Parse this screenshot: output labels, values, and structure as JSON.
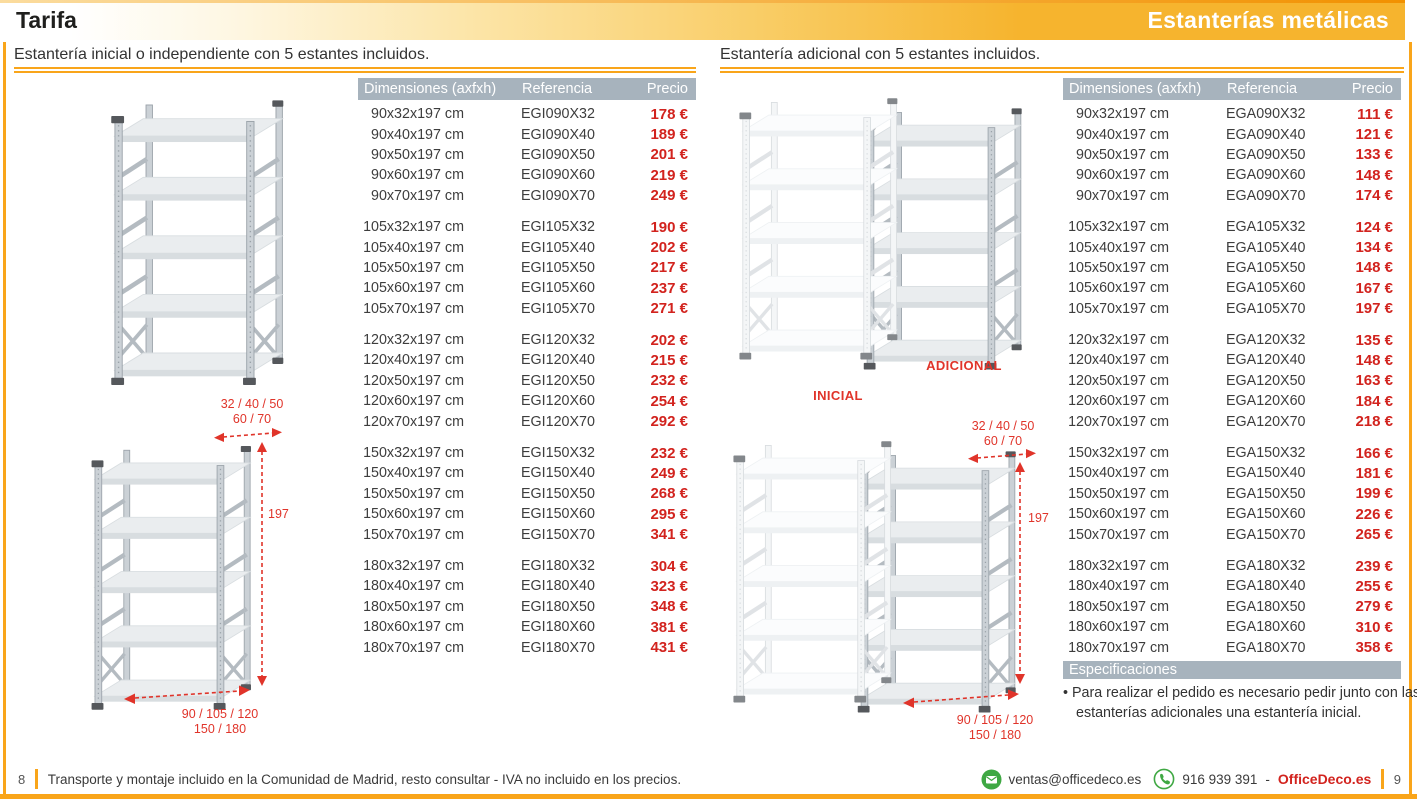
{
  "header": {
    "page_title": "Tarifa",
    "brand_title": "Estanterías metálicas"
  },
  "left_section": {
    "subtitle": "Estantería inicial o independiente con 5 estantes incluidos.",
    "table": {
      "columns": [
        "Dimensiones (axfxh)",
        "Referencia",
        "Precio"
      ],
      "groups": [
        {
          "rows": [
            [
              "90x32x197 cm",
              "EGI090X32",
              "178 €"
            ],
            [
              "90x40x197 cm",
              "EGI090X40",
              "189 €"
            ],
            [
              "90x50x197 cm",
              "EGI090X50",
              "201 €"
            ],
            [
              "90x60x197 cm",
              "EGI090X60",
              "219 €"
            ],
            [
              "90x70x197 cm",
              "EGI090X70",
              "249 €"
            ]
          ]
        },
        {
          "rows": [
            [
              "105x32x197 cm",
              "EGI105X32",
              "190 €"
            ],
            [
              "105x40x197 cm",
              "EGI105X40",
              "202 €"
            ],
            [
              "105x50x197 cm",
              "EGI105X50",
              "217 €"
            ],
            [
              "105x60x197 cm",
              "EGI105X60",
              "237 €"
            ],
            [
              "105x70x197 cm",
              "EGI105X70",
              "271 €"
            ]
          ]
        },
        {
          "rows": [
            [
              "120x32x197 cm",
              "EGI120X32",
              "202 €"
            ],
            [
              "120x40x197 cm",
              "EGI120X40",
              "215 €"
            ],
            [
              "120x50x197 cm",
              "EGI120X50",
              "232 €"
            ],
            [
              "120x60x197 cm",
              "EGI120X60",
              "254 €"
            ],
            [
              "120x70x197 cm",
              "EGI120X70",
              "292 €"
            ]
          ]
        },
        {
          "rows": [
            [
              "150x32x197 cm",
              "EGI150X32",
              "232 €"
            ],
            [
              "150x40x197 cm",
              "EGI150X40",
              "249 €"
            ],
            [
              "150x50x197 cm",
              "EGI150X50",
              "268 €"
            ],
            [
              "150x60x197 cm",
              "EGI150X60",
              "295 €"
            ],
            [
              "150x70x197 cm",
              "EGI150X70",
              "341 €"
            ]
          ]
        },
        {
          "rows": [
            [
              "180x32x197 cm",
              "EGI180X32",
              "304 €"
            ],
            [
              "180x40x197 cm",
              "EGI180X40",
              "323 €"
            ],
            [
              "180x50x197 cm",
              "EGI180X50",
              "348 €"
            ],
            [
              "180x60x197 cm",
              "EGI180X60",
              "381 €"
            ],
            [
              "180x70x197 cm",
              "EGI180X70",
              "431 €"
            ]
          ]
        }
      ]
    }
  },
  "right_section": {
    "subtitle": "Estantería adicional con 5 estantes incluidos.",
    "table": {
      "columns": [
        "Dimensiones (axfxh)",
        "Referencia",
        "Precio"
      ],
      "groups": [
        {
          "rows": [
            [
              "90x32x197 cm",
              "EGA090X32",
              "111 €"
            ],
            [
              "90x40x197 cm",
              "EGA090X40",
              "121 €"
            ],
            [
              "90x50x197 cm",
              "EGA090X50",
              "133 €"
            ],
            [
              "90x60x197 cm",
              "EGA090X60",
              "148 €"
            ],
            [
              "90x70x197 cm",
              "EGA090X70",
              "174 €"
            ]
          ]
        },
        {
          "rows": [
            [
              "105x32x197 cm",
              "EGA105X32",
              "124 €"
            ],
            [
              "105x40x197 cm",
              "EGA105X40",
              "134 €"
            ],
            [
              "105x50x197 cm",
              "EGA105X50",
              "148 €"
            ],
            [
              "105x60x197 cm",
              "EGA105X60",
              "167 €"
            ],
            [
              "105x70x197 cm",
              "EGA105X70",
              "197 €"
            ]
          ]
        },
        {
          "rows": [
            [
              "120x32x197 cm",
              "EGA120X32",
              "135 €"
            ],
            [
              "120x40x197 cm",
              "EGA120X40",
              "148 €"
            ],
            [
              "120x50x197 cm",
              "EGA120X50",
              "163 €"
            ],
            [
              "120x60x197 cm",
              "EGA120X60",
              "184 €"
            ],
            [
              "120x70x197 cm",
              "EGA120X70",
              "218 €"
            ]
          ]
        },
        {
          "rows": [
            [
              "150x32x197 cm",
              "EGA150X32",
              "166 €"
            ],
            [
              "150x40x197 cm",
              "EGA150X40",
              "181 €"
            ],
            [
              "150x50x197 cm",
              "EGA150X50",
              "199 €"
            ],
            [
              "150x60x197 cm",
              "EGA150X60",
              "226 €"
            ],
            [
              "150x70x197 cm",
              "EGA150X70",
              "265 €"
            ]
          ]
        },
        {
          "rows": [
            [
              "180x32x197 cm",
              "EGA180X32",
              "239 €"
            ],
            [
              "180x40x197 cm",
              "EGA180X40",
              "255 €"
            ],
            [
              "180x50x197 cm",
              "EGA180X50",
              "279 €"
            ],
            [
              "180x60x197 cm",
              "EGA180X60",
              "310 €"
            ],
            [
              "180x70x197 cm",
              "EGA180X70",
              "358 €"
            ]
          ]
        }
      ]
    },
    "specs": {
      "title": "Especificaciones",
      "bullet": "Para realizar el pedido es necesario pedir junto con las estanterías adicionales una estantería inicial."
    }
  },
  "illustrations": {
    "depth_sizes_line1": "32 / 40 / 50",
    "depth_sizes_line2": "60 / 70",
    "height_label": "197",
    "width_sizes_line1": "90 / 105 / 120",
    "width_sizes_line2": "150 / 180",
    "initial_label": "INICIAL",
    "additional_label": "ADICIONAL"
  },
  "footer": {
    "left_page_number": "8",
    "left_note": "Transporte y montaje incluido en la Comunidad de Madrid, resto consultar - IVA no incluido en los precios.",
    "email": "ventas@officedeco.es",
    "phone": "916 939 391",
    "separator": "-",
    "brand": "OfficeDeco.es",
    "right_page_number": "9"
  },
  "colors": {
    "gold": "#F6B42E",
    "orange_line": "#F29100",
    "hairline": "#F9A51A",
    "table_header_bg": "#A7B3BD",
    "price_red": "#D2231E",
    "annotation_red": "#E0342A",
    "green_icon": "#3FA843",
    "text_dark": "#3D3D3D"
  }
}
